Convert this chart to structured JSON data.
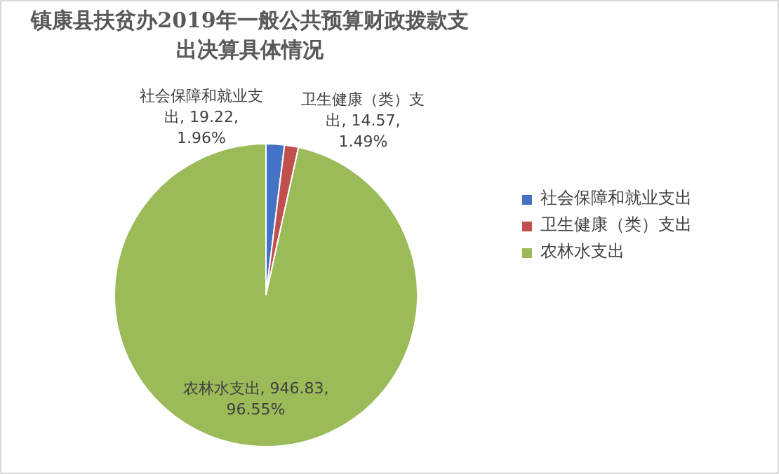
{
  "chart_data": {
    "type": "pie",
    "title": "镇康县扶贫办2019年一般公共预算财政拨款支出决算具体情况",
    "categories": [
      "社会保障和就业支出",
      "卫生健康（类）支出",
      "农林水支出"
    ],
    "values": [
      19.22,
      14.57,
      946.83
    ],
    "colors": [
      "#4472c4",
      "#c0504d",
      "#9bbb59"
    ],
    "value_labels": [
      "社会保障和就业支出, 19.22, 1.96%",
      "卫生健康（类）支出, 14.57, 1.49%",
      "农林水支出, 946.83, 96.55%"
    ],
    "legend": "right"
  }
}
